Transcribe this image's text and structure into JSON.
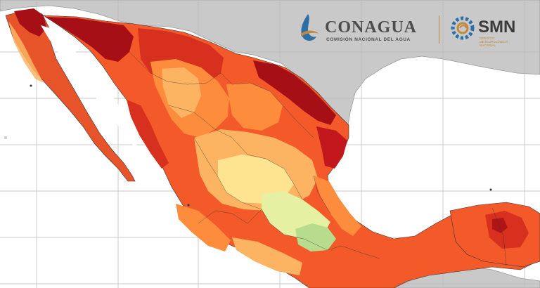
{
  "logos": {
    "conagua": {
      "name": "CONAGUA",
      "subtitle": "COMISIÓN NACIONAL DEL AGUA"
    },
    "smn": {
      "name": "SMN",
      "subtitle_lines": [
        "SERVICIO",
        "METEOROLÓGICO",
        "NACIONAL"
      ]
    }
  },
  "colors": {
    "background_land_other": "#c9c9c9",
    "ocean": "#ffffff",
    "grid": "#b8b8b8",
    "extreme_heat": "#a50f15",
    "very_hot": "#d7301f",
    "hot": "#f4592a",
    "warm": "#fd8d3c",
    "mild": "#fdb462",
    "cool": "#fee391",
    "cooler": "#e6f0a3",
    "coolest": "#b8dc8e",
    "conagua_brand": "#4d4d4d",
    "smn_brand": "#3a3a3a",
    "logo_gold": "#c08a3e",
    "logo_blue": "#2b6fa6"
  }
}
